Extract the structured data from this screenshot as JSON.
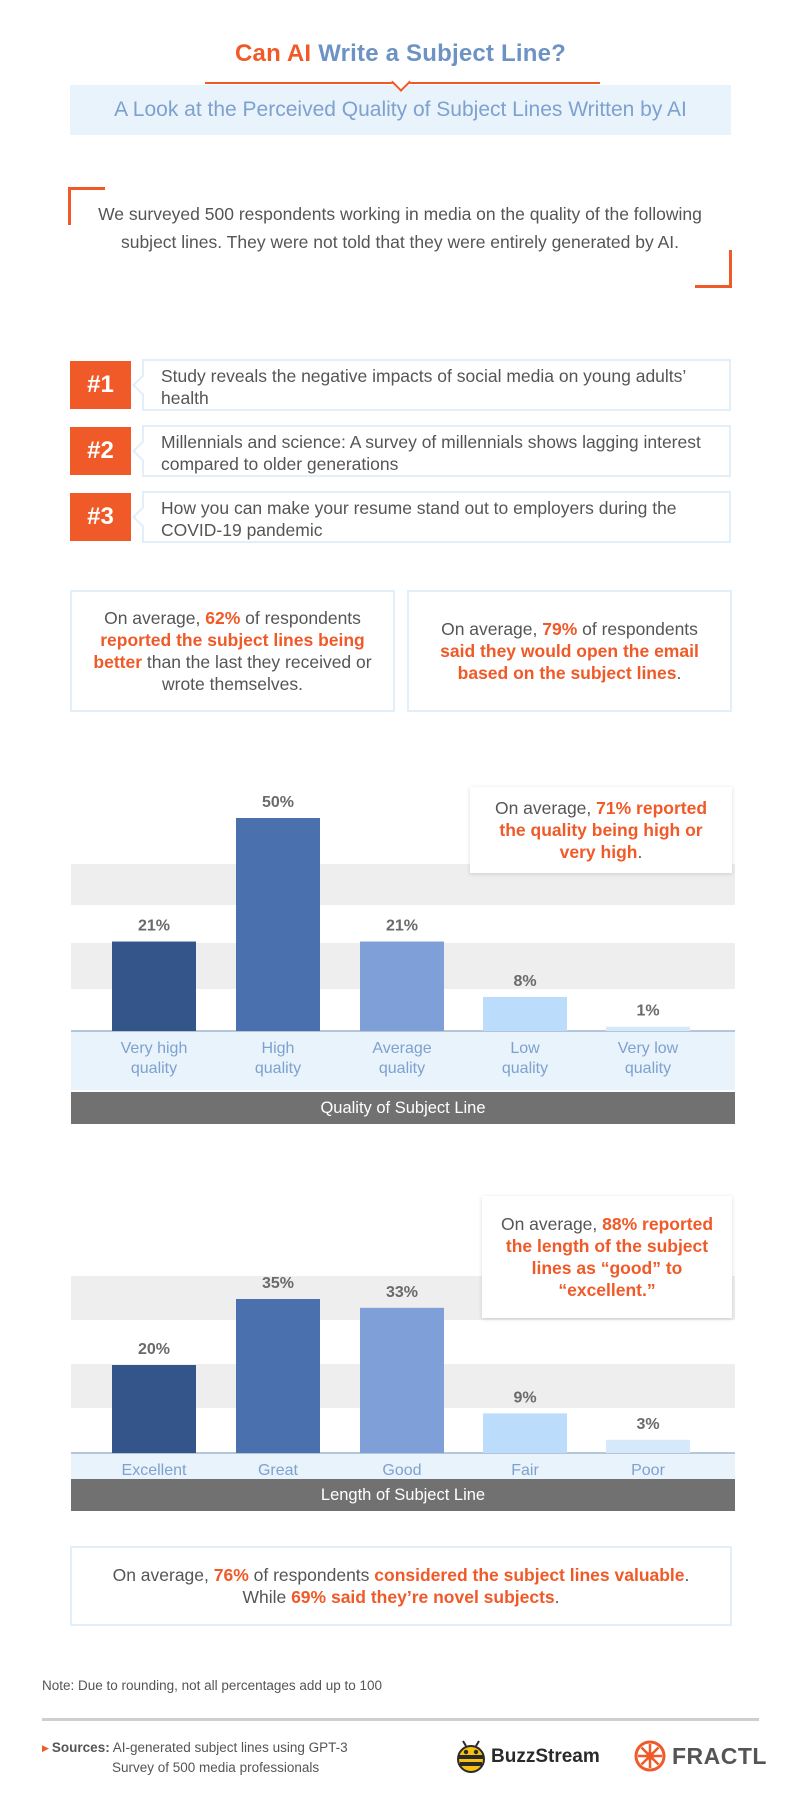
{
  "header": {
    "title_part1": "Can AI",
    "title_part2": "Write a Subject Line?",
    "subtitle": "A Look at the Perceived Quality of Subject Lines Written by AI"
  },
  "intro": "We surveyed 500 respondents working in media on the quality of the following subject lines. They were not told that they were entirely generated by AI.",
  "subject_lines": [
    {
      "rank": "#1",
      "text": "Study reveals the negative impacts of social media on young adults’ health"
    },
    {
      "rank": "#2",
      "text": "Millennials and science: A survey of millennials shows lagging interest compared to older generations"
    },
    {
      "rank": "#3",
      "text": "How you can make your resume stand out to employers during the COVID-19 pandemic"
    }
  ],
  "stats": {
    "better": {
      "pre": "On average, ",
      "pct": "62%",
      "mid": " of respondents ",
      "hl": "reported the subject lines being better",
      "post": " than the last they received or wrote themselves."
    },
    "open": {
      "pre": "On average, ",
      "pct": "79%",
      "mid": " of respondents ",
      "hl": "said they would open the email based on the subject lines",
      "post": "."
    }
  },
  "chart_data": [
    {
      "type": "bar",
      "title": "",
      "xlabel": "Quality of Subject Line",
      "ylabel": "",
      "categories": [
        "Very high quality",
        "High quality",
        "Average quality",
        "Low quality",
        "Very low quality"
      ],
      "category_lines": [
        [
          "Very high",
          "quality"
        ],
        [
          "High",
          "quality"
        ],
        [
          "Average",
          "quality"
        ],
        [
          "Low",
          "quality"
        ],
        [
          "Very low",
          "quality"
        ]
      ],
      "values": [
        21,
        50,
        21,
        8,
        1
      ],
      "labels": [
        "21%",
        "50%",
        "21%",
        "8%",
        "1%"
      ],
      "ylim": [
        0,
        50
      ],
      "colors": [
        "#34558a",
        "#4a70ad",
        "#7f9fd9",
        "#bcdcfb",
        "#d6e9fb"
      ],
      "callout": {
        "pre": "On average, ",
        "hl": "71% reported the quality being high or very high",
        "post": "."
      }
    },
    {
      "type": "bar",
      "title": "",
      "xlabel": "Length of Subject Line",
      "ylabel": "",
      "categories": [
        "Excellent",
        "Great",
        "Good",
        "Fair",
        "Poor"
      ],
      "category_lines": [
        [
          "Excellent"
        ],
        [
          "Great"
        ],
        [
          "Good"
        ],
        [
          "Fair"
        ],
        [
          "Poor"
        ]
      ],
      "values": [
        20,
        35,
        33,
        9,
        3
      ],
      "labels": [
        "20%",
        "35%",
        "33%",
        "9%",
        "3%"
      ],
      "ylim": [
        0,
        35
      ],
      "colors": [
        "#34558a",
        "#4a70ad",
        "#7f9fd9",
        "#bcdcfb",
        "#d6e9fb"
      ],
      "callout": {
        "pre": "On average, ",
        "hl": "88% reported the length of the subject lines as “good” to “excellent.”",
        "post": ""
      }
    }
  ],
  "valuable": {
    "pre": "On average, ",
    "pct": "76%",
    "mid": " of respondents ",
    "hl1": "considered the subject lines valuable",
    "mid2": ". While ",
    "hl2": "69% said they’re novel subjects",
    "post": "."
  },
  "footer": {
    "note": "Note: Due to rounding, not all percentages add up to 100",
    "sources_label": "Sources:",
    "source1": "AI-generated subject lines using GPT-3",
    "source2": "Survey of 500 media professionals",
    "logo1": "BuzzStream",
    "logo2": "FRACTL"
  },
  "colors": {
    "accent": "#f05a28",
    "blue_text": "#6d93c4",
    "light_panel": "#e8f3fb",
    "axis_bar": "#717171"
  }
}
